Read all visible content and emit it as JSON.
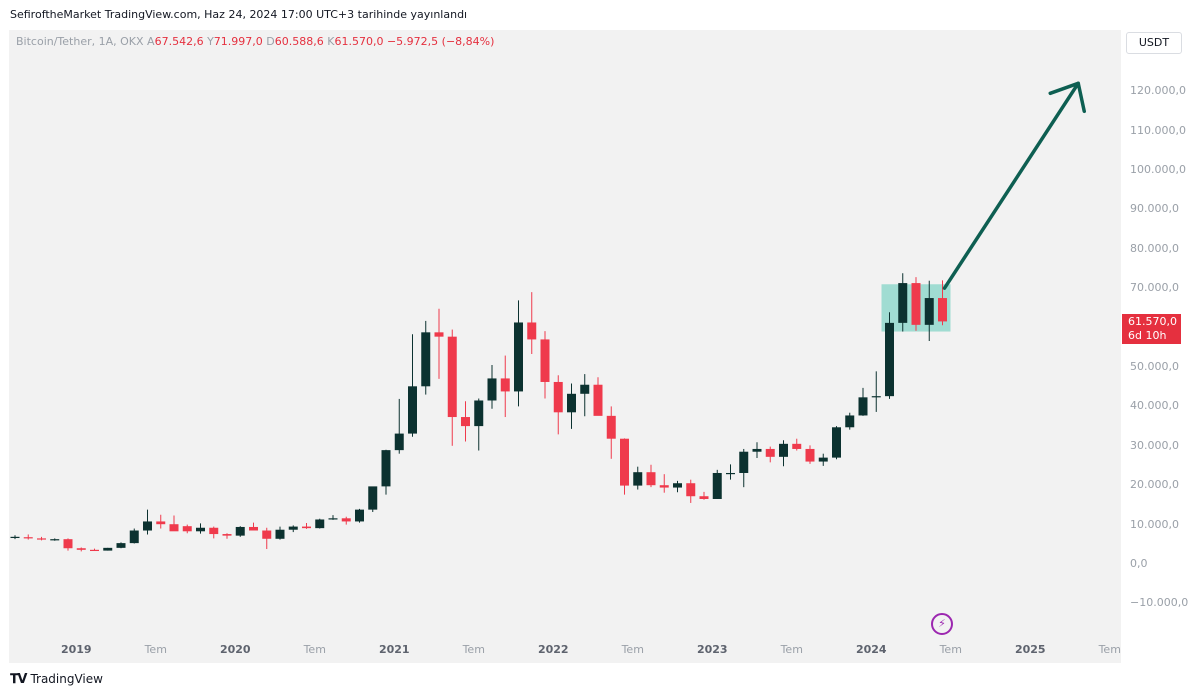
{
  "header": {
    "published": "SefiroftheMarket TradingView.com, Haz 24, 2024 17:00 UTC+3 tarihinde yayınlandı"
  },
  "legend": {
    "symbol": "Bitcoin/Tether, 1A, OKX",
    "open_label": "A",
    "open": "67.542,6",
    "high_label": "Y",
    "high": "71.997,0",
    "low_label": "D",
    "low": "60.588,6",
    "close_label": "K",
    "close": "61.570,0",
    "change": "−5.972,5 (−8,84%)"
  },
  "currency": "USDT",
  "price_tag": {
    "price": "61.570,0",
    "countdown": "6d 10h"
  },
  "footer": {
    "brand": "TradingView"
  },
  "colors": {
    "up": "#0c3230",
    "down": "#ef3a4c",
    "arrow": "#0e5f52",
    "box": "#7dd3c4"
  },
  "chart_data": {
    "type": "candlestick",
    "title": "Bitcoin/Tether, 1A, OKX",
    "interval": "1 month",
    "ylim": [
      -16000,
      132000
    ],
    "y_ticks": [
      {
        "value": 120000,
        "label": "120.000,0"
      },
      {
        "value": 110000,
        "label": "110.000,0"
      },
      {
        "value": 100000,
        "label": "100.000,0"
      },
      {
        "value": 90000,
        "label": "90.000,0"
      },
      {
        "value": 80000,
        "label": "80.000,0"
      },
      {
        "value": 70000,
        "label": "70.000,0"
      },
      {
        "value": 60000,
        "label": "60.000,0"
      },
      {
        "value": 50000,
        "label": "50.000,0"
      },
      {
        "value": 40000,
        "label": "40.000,0"
      },
      {
        "value": 30000,
        "label": "30.000,0"
      },
      {
        "value": 20000,
        "label": "20.000,0"
      },
      {
        "value": 10000,
        "label": "10.000,0"
      },
      {
        "value": 0,
        "label": "0,0"
      },
      {
        "value": -10000,
        "label": "−10.000,0"
      }
    ],
    "x_ticks": [
      {
        "label": "2019",
        "index": 5,
        "year": true
      },
      {
        "label": "Tem",
        "index": 11,
        "year": false
      },
      {
        "label": "2020",
        "index": 17,
        "year": true
      },
      {
        "label": "Tem",
        "index": 23,
        "year": false
      },
      {
        "label": "2021",
        "index": 29,
        "year": true
      },
      {
        "label": "Tem",
        "index": 35,
        "year": false
      },
      {
        "label": "2022",
        "index": 41,
        "year": true
      },
      {
        "label": "Tem",
        "index": 47,
        "year": false
      },
      {
        "label": "2023",
        "index": 53,
        "year": true
      },
      {
        "label": "Tem",
        "index": 59,
        "year": false
      },
      {
        "label": "2024",
        "index": 65,
        "year": true
      },
      {
        "label": "Tem",
        "index": 71,
        "year": false
      },
      {
        "label": "2025",
        "index": 77,
        "year": true
      },
      {
        "label": "Tem",
        "index": 83,
        "year": false
      }
    ],
    "candles": [
      {
        "o": 6600,
        "h": 7300,
        "l": 6300,
        "c": 6900
      },
      {
        "o": 6800,
        "h": 7500,
        "l": 6200,
        "c": 6500
      },
      {
        "o": 6500,
        "h": 6900,
        "l": 6000,
        "c": 6300
      },
      {
        "o": 6300,
        "h": 6500,
        "l": 5900,
        "c": 6300
      },
      {
        "o": 6300,
        "h": 6500,
        "l": 3400,
        "c": 4000
      },
      {
        "o": 4000,
        "h": 4200,
        "l": 3200,
        "c": 3600
      },
      {
        "o": 3600,
        "h": 3900,
        "l": 3400,
        "c": 3400
      },
      {
        "o": 3400,
        "h": 4100,
        "l": 3400,
        "c": 4100
      },
      {
        "o": 4100,
        "h": 5500,
        "l": 4000,
        "c": 5300
      },
      {
        "o": 5300,
        "h": 9000,
        "l": 5200,
        "c": 8500
      },
      {
        "o": 8500,
        "h": 13800,
        "l": 7500,
        "c": 10800
      },
      {
        "o": 10800,
        "h": 12500,
        "l": 9000,
        "c": 10100
      },
      {
        "o": 10100,
        "h": 12300,
        "l": 9400,
        "c": 8300
      },
      {
        "o": 9600,
        "h": 10000,
        "l": 7800,
        "c": 8300
      },
      {
        "o": 8300,
        "h": 10300,
        "l": 7700,
        "c": 9200
      },
      {
        "o": 9200,
        "h": 9500,
        "l": 6500,
        "c": 7600
      },
      {
        "o": 7600,
        "h": 7800,
        "l": 6400,
        "c": 7200
      },
      {
        "o": 7200,
        "h": 9600,
        "l": 6900,
        "c": 9400
      },
      {
        "o": 9400,
        "h": 10500,
        "l": 8500,
        "c": 8500
      },
      {
        "o": 8500,
        "h": 9200,
        "l": 3800,
        "c": 6400
      },
      {
        "o": 6400,
        "h": 9500,
        "l": 6200,
        "c": 8700
      },
      {
        "o": 8700,
        "h": 9800,
        "l": 8100,
        "c": 9500
      },
      {
        "o": 9500,
        "h": 10400,
        "l": 8900,
        "c": 9100
      },
      {
        "o": 9100,
        "h": 11500,
        "l": 9000,
        "c": 11300
      },
      {
        "o": 11300,
        "h": 12400,
        "l": 11200,
        "c": 11600
      },
      {
        "o": 11600,
        "h": 12000,
        "l": 10000,
        "c": 10800
      },
      {
        "o": 10800,
        "h": 14000,
        "l": 10500,
        "c": 13800
      },
      {
        "o": 13800,
        "h": 19400,
        "l": 13200,
        "c": 19700
      },
      {
        "o": 19700,
        "h": 29000,
        "l": 17600,
        "c": 28900
      },
      {
        "o": 28900,
        "h": 41900,
        "l": 28000,
        "c": 33100
      },
      {
        "o": 33100,
        "h": 58300,
        "l": 32300,
        "c": 45100
      },
      {
        "o": 45100,
        "h": 61700,
        "l": 43000,
        "c": 58800
      },
      {
        "o": 58800,
        "h": 64800,
        "l": 47000,
        "c": 57700
      },
      {
        "o": 57700,
        "h": 59500,
        "l": 30000,
        "c": 37300
      },
      {
        "o": 37300,
        "h": 41300,
        "l": 31100,
        "c": 35000
      },
      {
        "o": 35000,
        "h": 42000,
        "l": 28800,
        "c": 41500
      },
      {
        "o": 41500,
        "h": 50500,
        "l": 39400,
        "c": 47100
      },
      {
        "o": 47100,
        "h": 52900,
        "l": 37300,
        "c": 43800
      },
      {
        "o": 43800,
        "h": 66900,
        "l": 40000,
        "c": 61300
      },
      {
        "o": 61300,
        "h": 69000,
        "l": 53300,
        "c": 57000
      },
      {
        "o": 57000,
        "h": 59100,
        "l": 42000,
        "c": 46200
      },
      {
        "o": 46200,
        "h": 47900,
        "l": 32900,
        "c": 38500
      },
      {
        "o": 38500,
        "h": 45800,
        "l": 34300,
        "c": 43200
      },
      {
        "o": 43200,
        "h": 48200,
        "l": 37500,
        "c": 45500
      },
      {
        "o": 45500,
        "h": 47400,
        "l": 37700,
        "c": 37600
      },
      {
        "o": 37600,
        "h": 40000,
        "l": 26700,
        "c": 31800
      },
      {
        "o": 31800,
        "h": 31900,
        "l": 17600,
        "c": 19900
      },
      {
        "o": 19900,
        "h": 24700,
        "l": 18900,
        "c": 23300
      },
      {
        "o": 23300,
        "h": 25200,
        "l": 19500,
        "c": 20000
      },
      {
        "o": 20000,
        "h": 22800,
        "l": 18100,
        "c": 19400
      },
      {
        "o": 19400,
        "h": 21100,
        "l": 18200,
        "c": 20500
      },
      {
        "o": 20500,
        "h": 21400,
        "l": 15500,
        "c": 17200
      },
      {
        "o": 17200,
        "h": 18300,
        "l": 16300,
        "c": 16500
      },
      {
        "o": 16500,
        "h": 23900,
        "l": 16500,
        "c": 23100
      },
      {
        "o": 23100,
        "h": 25300,
        "l": 21400,
        "c": 23100
      },
      {
        "o": 23100,
        "h": 29200,
        "l": 19500,
        "c": 28500
      },
      {
        "o": 28500,
        "h": 30900,
        "l": 26900,
        "c": 29200
      },
      {
        "o": 29200,
        "h": 29800,
        "l": 25800,
        "c": 27200
      },
      {
        "o": 27200,
        "h": 31400,
        "l": 24800,
        "c": 30500
      },
      {
        "o": 30500,
        "h": 31800,
        "l": 28800,
        "c": 29200
      },
      {
        "o": 29200,
        "h": 30100,
        "l": 25400,
        "c": 26000
      },
      {
        "o": 26000,
        "h": 28000,
        "l": 24900,
        "c": 27000
      },
      {
        "o": 27000,
        "h": 35000,
        "l": 26600,
        "c": 34700
      },
      {
        "o": 34700,
        "h": 38400,
        "l": 34100,
        "c": 37700
      },
      {
        "o": 37700,
        "h": 44700,
        "l": 37600,
        "c": 42300
      },
      {
        "o": 42300,
        "h": 48900,
        "l": 38600,
        "c": 42600
      },
      {
        "o": 42600,
        "h": 63900,
        "l": 41900,
        "c": 61200
      },
      {
        "o": 61200,
        "h": 73800,
        "l": 59000,
        "c": 71300
      },
      {
        "o": 71300,
        "h": 72800,
        "l": 59200,
        "c": 60700
      },
      {
        "o": 60700,
        "h": 71900,
        "l": 56600,
        "c": 67500
      },
      {
        "o": 67500,
        "h": 72000,
        "l": 60600,
        "c": 61570
      }
    ],
    "annotations": {
      "box": {
        "start_index": 66,
        "end_index": 70,
        "low": 59000,
        "high": 71000
      },
      "arrow": {
        "from_index": 70,
        "from_value": 70000,
        "to_index": 77,
        "to_value": 122000
      }
    }
  }
}
